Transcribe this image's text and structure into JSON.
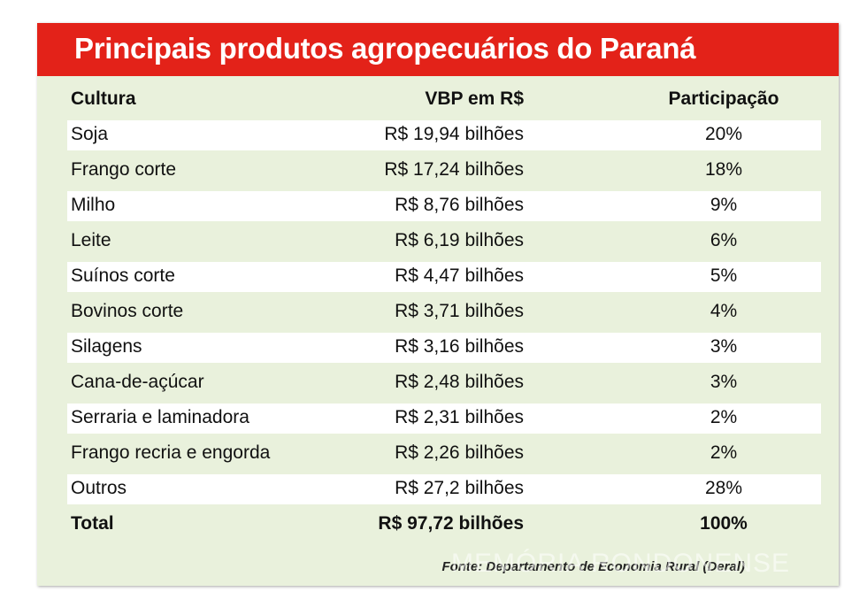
{
  "title": "Principais produtos agropecuários do Paraná",
  "colors": {
    "banner": "#e32219",
    "background": "#e9f1dc",
    "row_band": "#ffffff"
  },
  "chart_data": {
    "type": "table",
    "title": "Principais produtos agropecuários do Paraná",
    "columns": [
      "Cultura",
      "VBP em R$",
      "Participação"
    ],
    "rows": [
      [
        "Soja",
        "R$ 19,94 bilhões",
        "20%"
      ],
      [
        "Frango corte",
        "R$ 17,24 bilhões",
        "18%"
      ],
      [
        "Milho",
        "R$ 8,76 bilhões",
        "9%"
      ],
      [
        "Leite",
        "R$ 6,19 bilhões",
        "6%"
      ],
      [
        "Suínos corte",
        "R$ 4,47 bilhões",
        "5%"
      ],
      [
        "Bovinos corte",
        "R$ 3,71 bilhões",
        "4%"
      ],
      [
        "Silagens",
        "R$ 3,16 bilhões",
        "3%"
      ],
      [
        "Cana-de-açúcar",
        "R$ 2,48 bilhões",
        "3%"
      ],
      [
        "Serraria e laminadora",
        "R$ 2,31 bilhões",
        "2%"
      ],
      [
        "Frango recria e engorda",
        "R$ 2,26 bilhões",
        "2%"
      ],
      [
        "Outros",
        "R$ 27,2 bilhões",
        "28%"
      ]
    ],
    "total": [
      "Total",
      "R$ 97,72 bilhões",
      "100%"
    ],
    "source": "Fonte: Departamento de Economia Rural (Deral)"
  },
  "watermark": "MEMÓRIA RONDONENSE"
}
